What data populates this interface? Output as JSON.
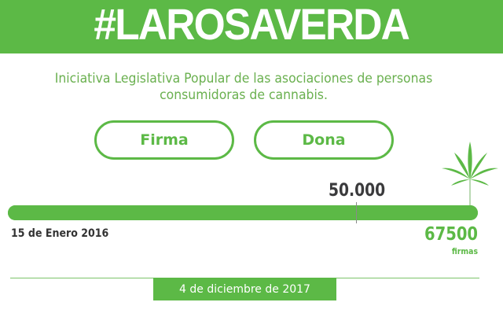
{
  "header": {
    "title": "#LAROSAVERDA"
  },
  "subtitle": {
    "line1": "Iniciativa Legislativa Popular de las asociaciones de personas",
    "line2": "consumidoras de cannabis."
  },
  "actions": {
    "sign_label": "Firma",
    "donate_label": "Dona"
  },
  "progress": {
    "goal_label": "50.000",
    "goal_fraction_of_bar": 0.74,
    "start_date": "15 de Enero 2016",
    "count": "67500",
    "count_unit": "firmas",
    "fill_percent": 100
  },
  "footer": {
    "date": "4 de diciembre de 2017"
  },
  "colors": {
    "brand_green": "#5cb946",
    "text_dark": "#333333"
  },
  "icons": {
    "leaf": "cannabis-leaf-icon"
  }
}
